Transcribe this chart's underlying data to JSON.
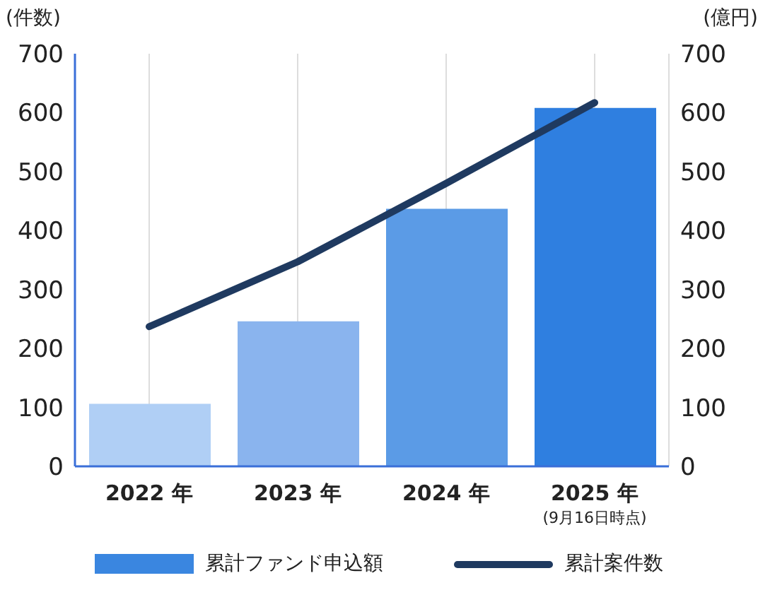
{
  "chart_data": {
    "type": "bar",
    "ylabel": "(件数)",
    "y2label": "(億円)",
    "categories": [
      "2022 年",
      "2023 年",
      "2024 年",
      "2025 年\n(9月16日時点)"
    ],
    "series": [
      {
        "name": "累計ファンド申込額",
        "color": "#3a86e0",
        "colors": [
          "#b0cff5",
          "#8ab4ee",
          "#5b9be6",
          "#2f7fe0"
        ],
        "values": [
          106,
          246,
          437,
          608
        ]
      },
      {
        "name": "累計案件数",
        "type": "line",
        "color": "#1f3a60",
        "values": [
          237,
          347,
          480,
          617
        ],
        "marker": "none"
      }
    ],
    "ylim": [
      0,
      700
    ],
    "yticks": [
      0,
      100,
      200,
      300,
      400,
      500,
      600,
      700
    ],
    "y2lim": [
      0,
      700
    ],
    "y2ticks": [
      0,
      100,
      200,
      300,
      400,
      500,
      600,
      700
    ],
    "grid": "x",
    "legend": "bottom"
  }
}
